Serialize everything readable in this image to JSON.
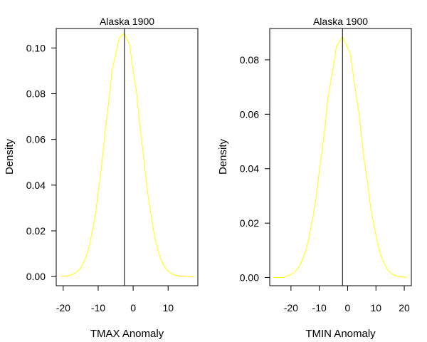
{
  "chart_data": [
    {
      "type": "line",
      "title": "Alaska 1900",
      "xlabel": "TMAX Anomaly",
      "ylabel": "Density",
      "xlim": [
        -22,
        18.5
      ],
      "ylim": [
        -0.004,
        0.1085
      ],
      "xticks": [
        -20,
        -10,
        0,
        10
      ],
      "yticks": [
        0.0,
        0.02,
        0.04,
        0.06,
        0.08,
        0.1
      ],
      "ytick_labels": [
        "0.00",
        "0.02",
        "0.04",
        "0.06",
        "0.08",
        "0.10"
      ],
      "vline": -2.5,
      "series": [
        {
          "color": "#ffff00",
          "x": [
            -20.5,
            -18,
            -16,
            -14,
            -12,
            -10,
            -8,
            -6,
            -4,
            -2.5,
            -1,
            1,
            3,
            5,
            7,
            9,
            11,
            13,
            15,
            17.5
          ],
          "y": [
            0.0001,
            0.0006,
            0.0022,
            0.0068,
            0.0174,
            0.0371,
            0.0641,
            0.0905,
            0.1044,
            0.1065,
            0.1013,
            0.0803,
            0.0527,
            0.0284,
            0.0124,
            0.0044,
            0.0013,
            0.0003,
            0.0001,
            0.0
          ]
        }
      ]
    },
    {
      "type": "line",
      "title": "Alaska 1900",
      "xlabel": "TMIN Anomaly",
      "ylabel": "Density",
      "xlim": [
        -27.5,
        22.5
      ],
      "ylim": [
        -0.003,
        0.0915
      ],
      "xticks": [
        -20,
        -10,
        0,
        10,
        20
      ],
      "yticks": [
        0.0,
        0.02,
        0.04,
        0.06,
        0.08
      ],
      "ytick_labels": [
        "0.00",
        "0.02",
        "0.04",
        "0.06",
        "0.08"
      ],
      "vline": -1.8,
      "series": [
        {
          "color": "#ffff00",
          "x": [
            -26,
            -22,
            -19,
            -16,
            -13,
            -10,
            -7,
            -4,
            -1.8,
            1,
            4,
            7,
            10,
            13,
            16,
            19,
            21
          ],
          "y": [
            0.0,
            0.0004,
            0.0018,
            0.0065,
            0.0183,
            0.0393,
            0.0657,
            0.0847,
            0.0885,
            0.0823,
            0.0607,
            0.0353,
            0.0158,
            0.0052,
            0.0012,
            0.0002,
            0.0001
          ]
        }
      ]
    }
  ]
}
